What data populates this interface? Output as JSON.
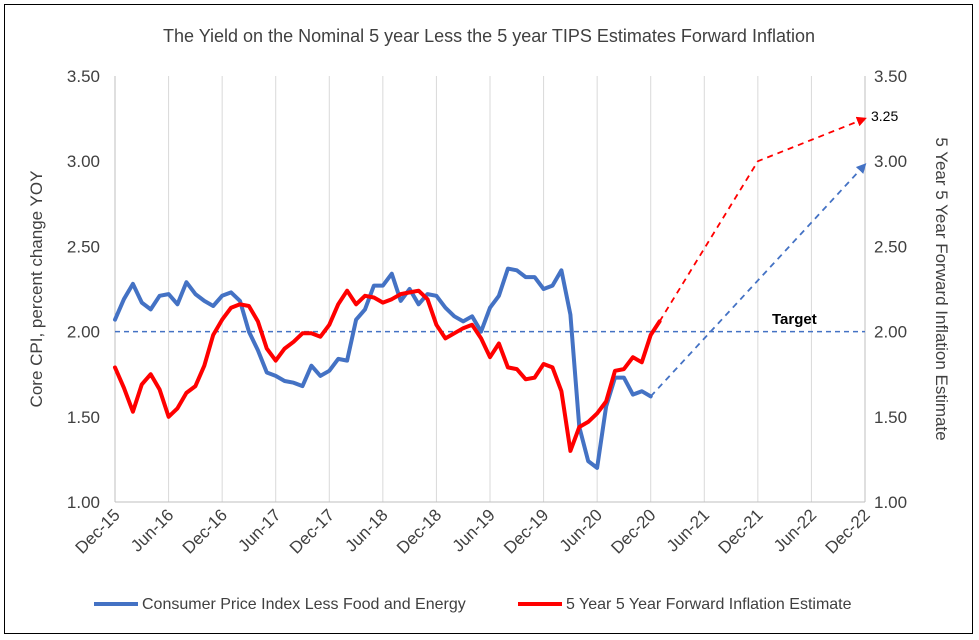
{
  "chart_data": {
    "type": "line",
    "title": "The Yield on the Nominal 5 year Less the 5 year TIPS Estimates Forward Inflation",
    "ylabel_left": "Core CPI, percent change YOY",
    "ylabel_right": "5 Year 5 Year Forward Inflation Estimate",
    "ylim": [
      1.0,
      3.5
    ],
    "yticks": [
      "1.00",
      "1.50",
      "2.00",
      "2.50",
      "3.00",
      "3.50"
    ],
    "xticks": [
      "Dec-15",
      "Jun-16",
      "Dec-16",
      "Jun-17",
      "Dec-17",
      "Jun-18",
      "Dec-18",
      "Jun-19",
      "Dec-19",
      "Jun-20",
      "Dec-20",
      "Jun-21",
      "Dec-21",
      "Jun-22",
      "Dec-22"
    ],
    "grid": "vertical",
    "legend_position": "bottom",
    "series": [
      {
        "name": "Consumer Price Index Less Food and Energy",
        "color": "#4472C4",
        "x": [
          0,
          1,
          2,
          3,
          4,
          5,
          6,
          7,
          8,
          9,
          10,
          11,
          12,
          13,
          14,
          15,
          16,
          17,
          18,
          19,
          20,
          21,
          22,
          23,
          24,
          25,
          26,
          27,
          28,
          29,
          30,
          31,
          32,
          33,
          34,
          35,
          36,
          37,
          38,
          39,
          40,
          41,
          42,
          43,
          44,
          45,
          46,
          47,
          48,
          49,
          50,
          51,
          52,
          53,
          54,
          55,
          56,
          57,
          58,
          59,
          60
        ],
        "values": [
          2.07,
          2.19,
          2.28,
          2.17,
          2.13,
          2.21,
          2.22,
          2.16,
          2.29,
          2.22,
          2.18,
          2.15,
          2.21,
          2.23,
          2.18,
          2.0,
          1.89,
          1.76,
          1.74,
          1.71,
          1.7,
          1.68,
          1.8,
          1.74,
          1.77,
          1.84,
          1.83,
          2.07,
          2.13,
          2.27,
          2.27,
          2.34,
          2.18,
          2.25,
          2.16,
          2.22,
          2.21,
          2.14,
          2.09,
          2.06,
          2.09,
          2.0,
          2.14,
          2.21,
          2.37,
          2.36,
          2.32,
          2.32,
          2.25,
          2.27,
          2.36,
          2.1,
          1.44,
          1.24,
          1.2,
          1.56,
          1.73,
          1.73,
          1.63,
          1.65,
          1.62
        ]
      },
      {
        "name": "5 Year 5 Year Forward Inflation Estimate",
        "color": "#FF0000",
        "x": [
          0,
          1,
          2,
          3,
          4,
          5,
          6,
          7,
          8,
          9,
          10,
          11,
          12,
          13,
          14,
          15,
          16,
          17,
          18,
          19,
          20,
          21,
          22,
          23,
          24,
          25,
          26,
          27,
          28,
          29,
          30,
          31,
          32,
          33,
          34,
          35,
          36,
          37,
          38,
          39,
          40,
          41,
          42,
          43,
          44,
          45,
          46,
          47,
          48,
          49,
          50,
          51,
          52,
          53,
          54,
          55,
          56,
          57,
          58,
          59,
          60,
          61
        ],
        "values": [
          1.79,
          1.67,
          1.53,
          1.69,
          1.75,
          1.66,
          1.5,
          1.55,
          1.64,
          1.68,
          1.8,
          1.98,
          2.07,
          2.14,
          2.16,
          2.15,
          2.06,
          1.9,
          1.83,
          1.9,
          1.94,
          1.99,
          1.99,
          1.97,
          2.04,
          2.16,
          2.24,
          2.16,
          2.21,
          2.2,
          2.17,
          2.19,
          2.22,
          2.23,
          2.24,
          2.19,
          2.04,
          1.96,
          1.99,
          2.02,
          2.04,
          1.96,
          1.85,
          1.93,
          1.79,
          1.78,
          1.72,
          1.73,
          1.81,
          1.79,
          1.65,
          1.3,
          1.44,
          1.47,
          1.52,
          1.59,
          1.77,
          1.78,
          1.85,
          1.82,
          1.98,
          2.06
        ]
      }
    ],
    "projections": [
      {
        "color": "#4472C4",
        "style": "dashed-arrow",
        "x": [
          60,
          84
        ],
        "values": [
          1.62,
          2.98
        ]
      },
      {
        "color": "#FF0000",
        "style": "dashed-arrow",
        "x": [
          61,
          72,
          84
        ],
        "values": [
          2.06,
          3.0,
          3.25
        ]
      }
    ],
    "target": {
      "label": "Target",
      "value": 2.0,
      "color": "#4472C4"
    },
    "annotations": [
      {
        "text": "3.25"
      }
    ]
  }
}
